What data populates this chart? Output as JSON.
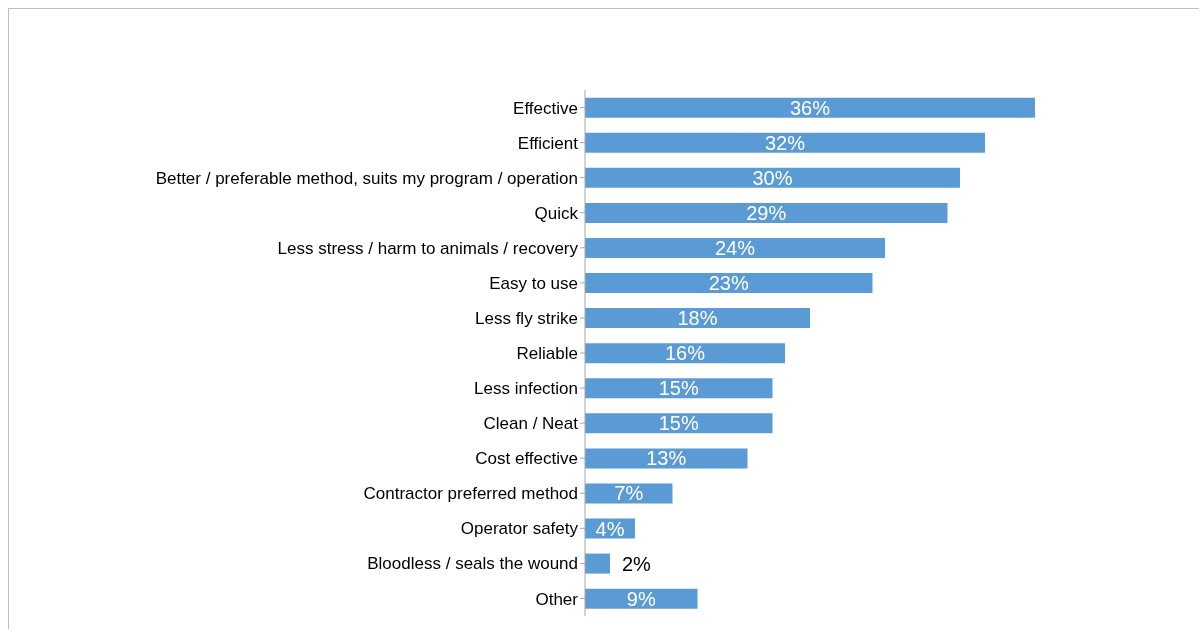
{
  "chart_data": {
    "type": "bar",
    "orientation": "horizontal",
    "categories": [
      "Effective",
      "Efficient",
      "Better / preferable method, suits my program / operation",
      "Quick",
      "Less stress / harm to animals / recovery",
      "Easy to use",
      "Less fly strike",
      "Reliable",
      "Less infection",
      "Clean / Neat",
      "Cost effective",
      "Contractor preferred method",
      "Operator safety",
      "Bloodless / seals the wound",
      "Other"
    ],
    "values": [
      36,
      32,
      30,
      29,
      24,
      23,
      18,
      16,
      15,
      15,
      13,
      7,
      4,
      2,
      9
    ],
    "value_labels": [
      "36%",
      "32%",
      "30%",
      "29%",
      "24%",
      "23%",
      "18%",
      "16%",
      "15%",
      "15%",
      "13%",
      "7%",
      "4%",
      "2%",
      "9%"
    ],
    "color": "#5b9bd5",
    "grid": false,
    "legend": false
  }
}
